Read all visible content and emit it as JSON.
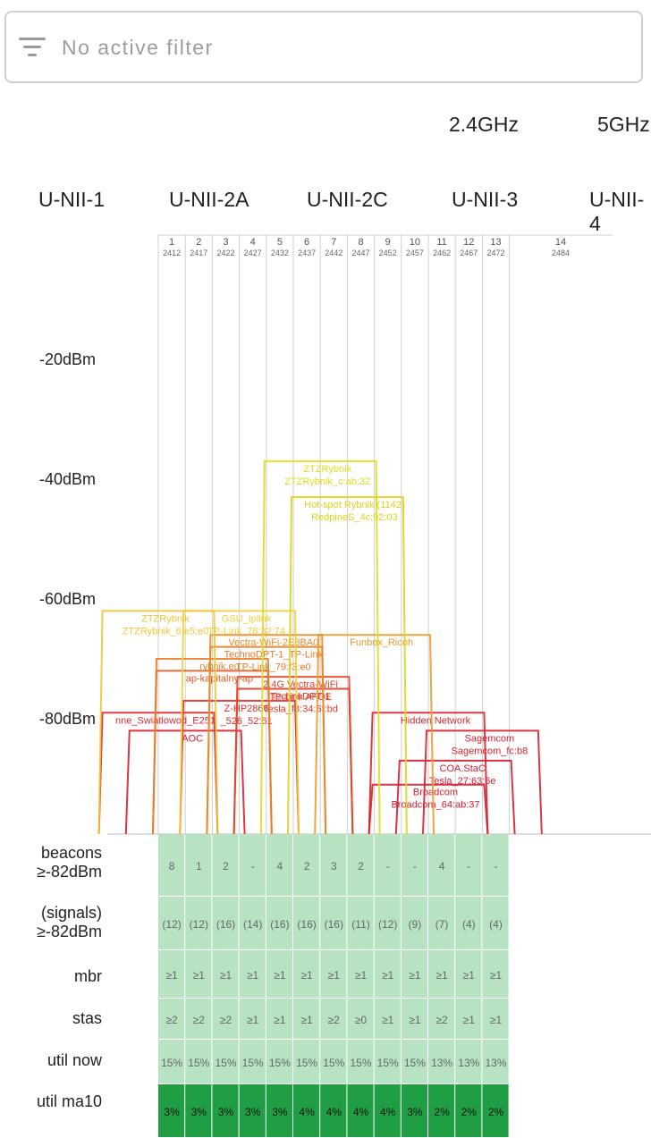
{
  "filter": {
    "icon": "filter-list-icon",
    "placeholder": "No active filter"
  },
  "bands": {
    "ghz24": "2.4GHz",
    "ghz5": "5GHz",
    "unii1": "U-NII-1",
    "unii2a": "U-NII-2A",
    "unii2c": "U-NII-2C",
    "unii3": "U-NII-3",
    "unii4": "U-NII-4"
  },
  "y_axis": [
    "-20dBm",
    "-40dBm",
    "-60dBm",
    "-80dBm"
  ],
  "channels": [
    {
      "ch": "1",
      "freq": "2412"
    },
    {
      "ch": "2",
      "freq": "2417"
    },
    {
      "ch": "3",
      "freq": "2422"
    },
    {
      "ch": "4",
      "freq": "2427"
    },
    {
      "ch": "5",
      "freq": "2432"
    },
    {
      "ch": "6",
      "freq": "2437"
    },
    {
      "ch": "7",
      "freq": "2442"
    },
    {
      "ch": "8",
      "freq": "2447"
    },
    {
      "ch": "9",
      "freq": "2452"
    },
    {
      "ch": "10",
      "freq": "2457"
    },
    {
      "ch": "11",
      "freq": "2462"
    },
    {
      "ch": "12",
      "freq": "2467"
    },
    {
      "ch": "13",
      "freq": "2472"
    },
    {
      "ch": "14",
      "freq": "2484"
    }
  ],
  "networks": [
    {
      "ssid": "ZTZRybnik",
      "bssid": "ZTZRybnik_c:ab:32",
      "ch": 7,
      "dbm": -37,
      "color": "#e0dc1e"
    },
    {
      "ssid": "Hot-spot Rybnik (1142)",
      "bssid": "RedpineS_4c:92:03",
      "ch": 8,
      "dbm": -43,
      "color": "#dfd21c"
    },
    {
      "ssid": "GSU_tplink",
      "bssid": "TP-Link_78:32:74",
      "ch": 4,
      "dbm": -62,
      "color": "#f2cf3a"
    },
    {
      "ssid": "ZTZRybnik",
      "bssid": "ZTZRybnik_6:e5:e0",
      "ch": 1,
      "dbm": -62,
      "color": "#f0c633"
    },
    {
      "ssid": "Funbox_Ricoh",
      "bssid": "",
      "ch": 9,
      "dbm": -66,
      "color": "#ec9a2a"
    },
    {
      "ssid": "Vectra-WiFi-2E8BA0",
      "bssid": "",
      "ch": 5,
      "dbm": -66,
      "color": "#ea8c28"
    },
    {
      "ssid": "TechnoDPT-1_TP-Link",
      "bssid": "TP-Link_79:f3:e0",
      "ch": 5,
      "dbm": -68,
      "color": "#ea7a26"
    },
    {
      "ssid": "rybnik.eu",
      "bssid": "",
      "ch": 3,
      "dbm": -70,
      "color": "#e8802a"
    },
    {
      "ssid": "ap-kapitalny-ap",
      "bssid": "",
      "ch": 3,
      "dbm": -72,
      "color": "#e65a24"
    },
    {
      "ssid": "2.4G Vectra-WiFi",
      "bssid": "TP-Link AFOE",
      "ch": 6,
      "dbm": -73,
      "color": "#e2482a"
    },
    {
      "ssid": "TechnoDPT-1",
      "bssid": "Tesla_f8:34:5f:bd",
      "ch": 6,
      "dbm": -75,
      "color": "#e03a2a"
    },
    {
      "ssid": "Z-HP2866",
      "bssid": "_526_52:61",
      "ch": 4,
      "dbm": -77,
      "color": "#dd2e2e"
    },
    {
      "ssid": "nne_Swiatlowod_E251",
      "bssid": "",
      "ch": 1,
      "dbm": -79,
      "color": "#db2a2e"
    },
    {
      "ssid": "Hidden Network",
      "bssid": "",
      "ch": 11,
      "dbm": -79,
      "color": "#d92430"
    },
    {
      "ssid": "AOC",
      "bssid": "",
      "ch": 2,
      "dbm": -82,
      "color": "#d81f30"
    },
    {
      "ssid": "Broadcom",
      "bssid": "Broadcom_64:ab:37",
      "ch": 11,
      "dbm": -91,
      "color": "#d91b30"
    },
    {
      "ssid": "COA.StaC",
      "bssid": "Tesla_27:63:6e",
      "ch": 12,
      "dbm": -87,
      "color": "#d81c2f"
    },
    {
      "ssid": "Sagemcom",
      "bssid": "Sagemcom_fc:b8",
      "ch": 13,
      "dbm": -82,
      "color": "#d8202e"
    }
  ],
  "rows": {
    "beacons": {
      "label1": "beacons",
      "label2": "≥-82dBm",
      "values": [
        "8",
        "1",
        "2",
        "-",
        "4",
        "2",
        "3",
        "2",
        "-",
        "-",
        "4",
        "-",
        "-"
      ]
    },
    "signals": {
      "label1": "(signals)",
      "label2": "≥-82dBm",
      "values": [
        "(12)",
        "(12)",
        "(16)",
        "(14)",
        "(16)",
        "(16)",
        "(16)",
        "(11)",
        "(12)",
        "(9)",
        "(7)",
        "(4)",
        "(4)"
      ]
    },
    "mbr": {
      "label": "mbr",
      "values": [
        "≥1",
        "≥1",
        "≥1",
        "≥1",
        "≥1",
        "≥1",
        "≥1",
        "≥1",
        "≥1",
        "≥1",
        "≥1",
        "≥1",
        "≥1"
      ]
    },
    "stas": {
      "label": "stas",
      "values": [
        "≥2",
        "≥2",
        "≥2",
        "≥1",
        "≥1",
        "≥1",
        "≥2",
        "≥0",
        "≥1",
        "≥1",
        "≥2",
        "≥1",
        "≥1"
      ]
    },
    "util_now": {
      "label": "util now",
      "values": [
        "15%",
        "15%",
        "15%",
        "15%",
        "15%",
        "15%",
        "15%",
        "15%",
        "15%",
        "15%",
        "13%",
        "13%",
        "13%"
      ]
    },
    "util_ma10": {
      "label": "util ma10",
      "values": [
        "3%",
        "3%",
        "3%",
        "3%",
        "3%",
        "4%",
        "4%",
        "4%",
        "4%",
        "3%",
        "2%",
        "2%",
        "2%"
      ]
    }
  },
  "colors": {
    "table_green": "#b8e3c2",
    "table_dark_green": "#1f9e43",
    "grid": "#cfcfcf"
  }
}
